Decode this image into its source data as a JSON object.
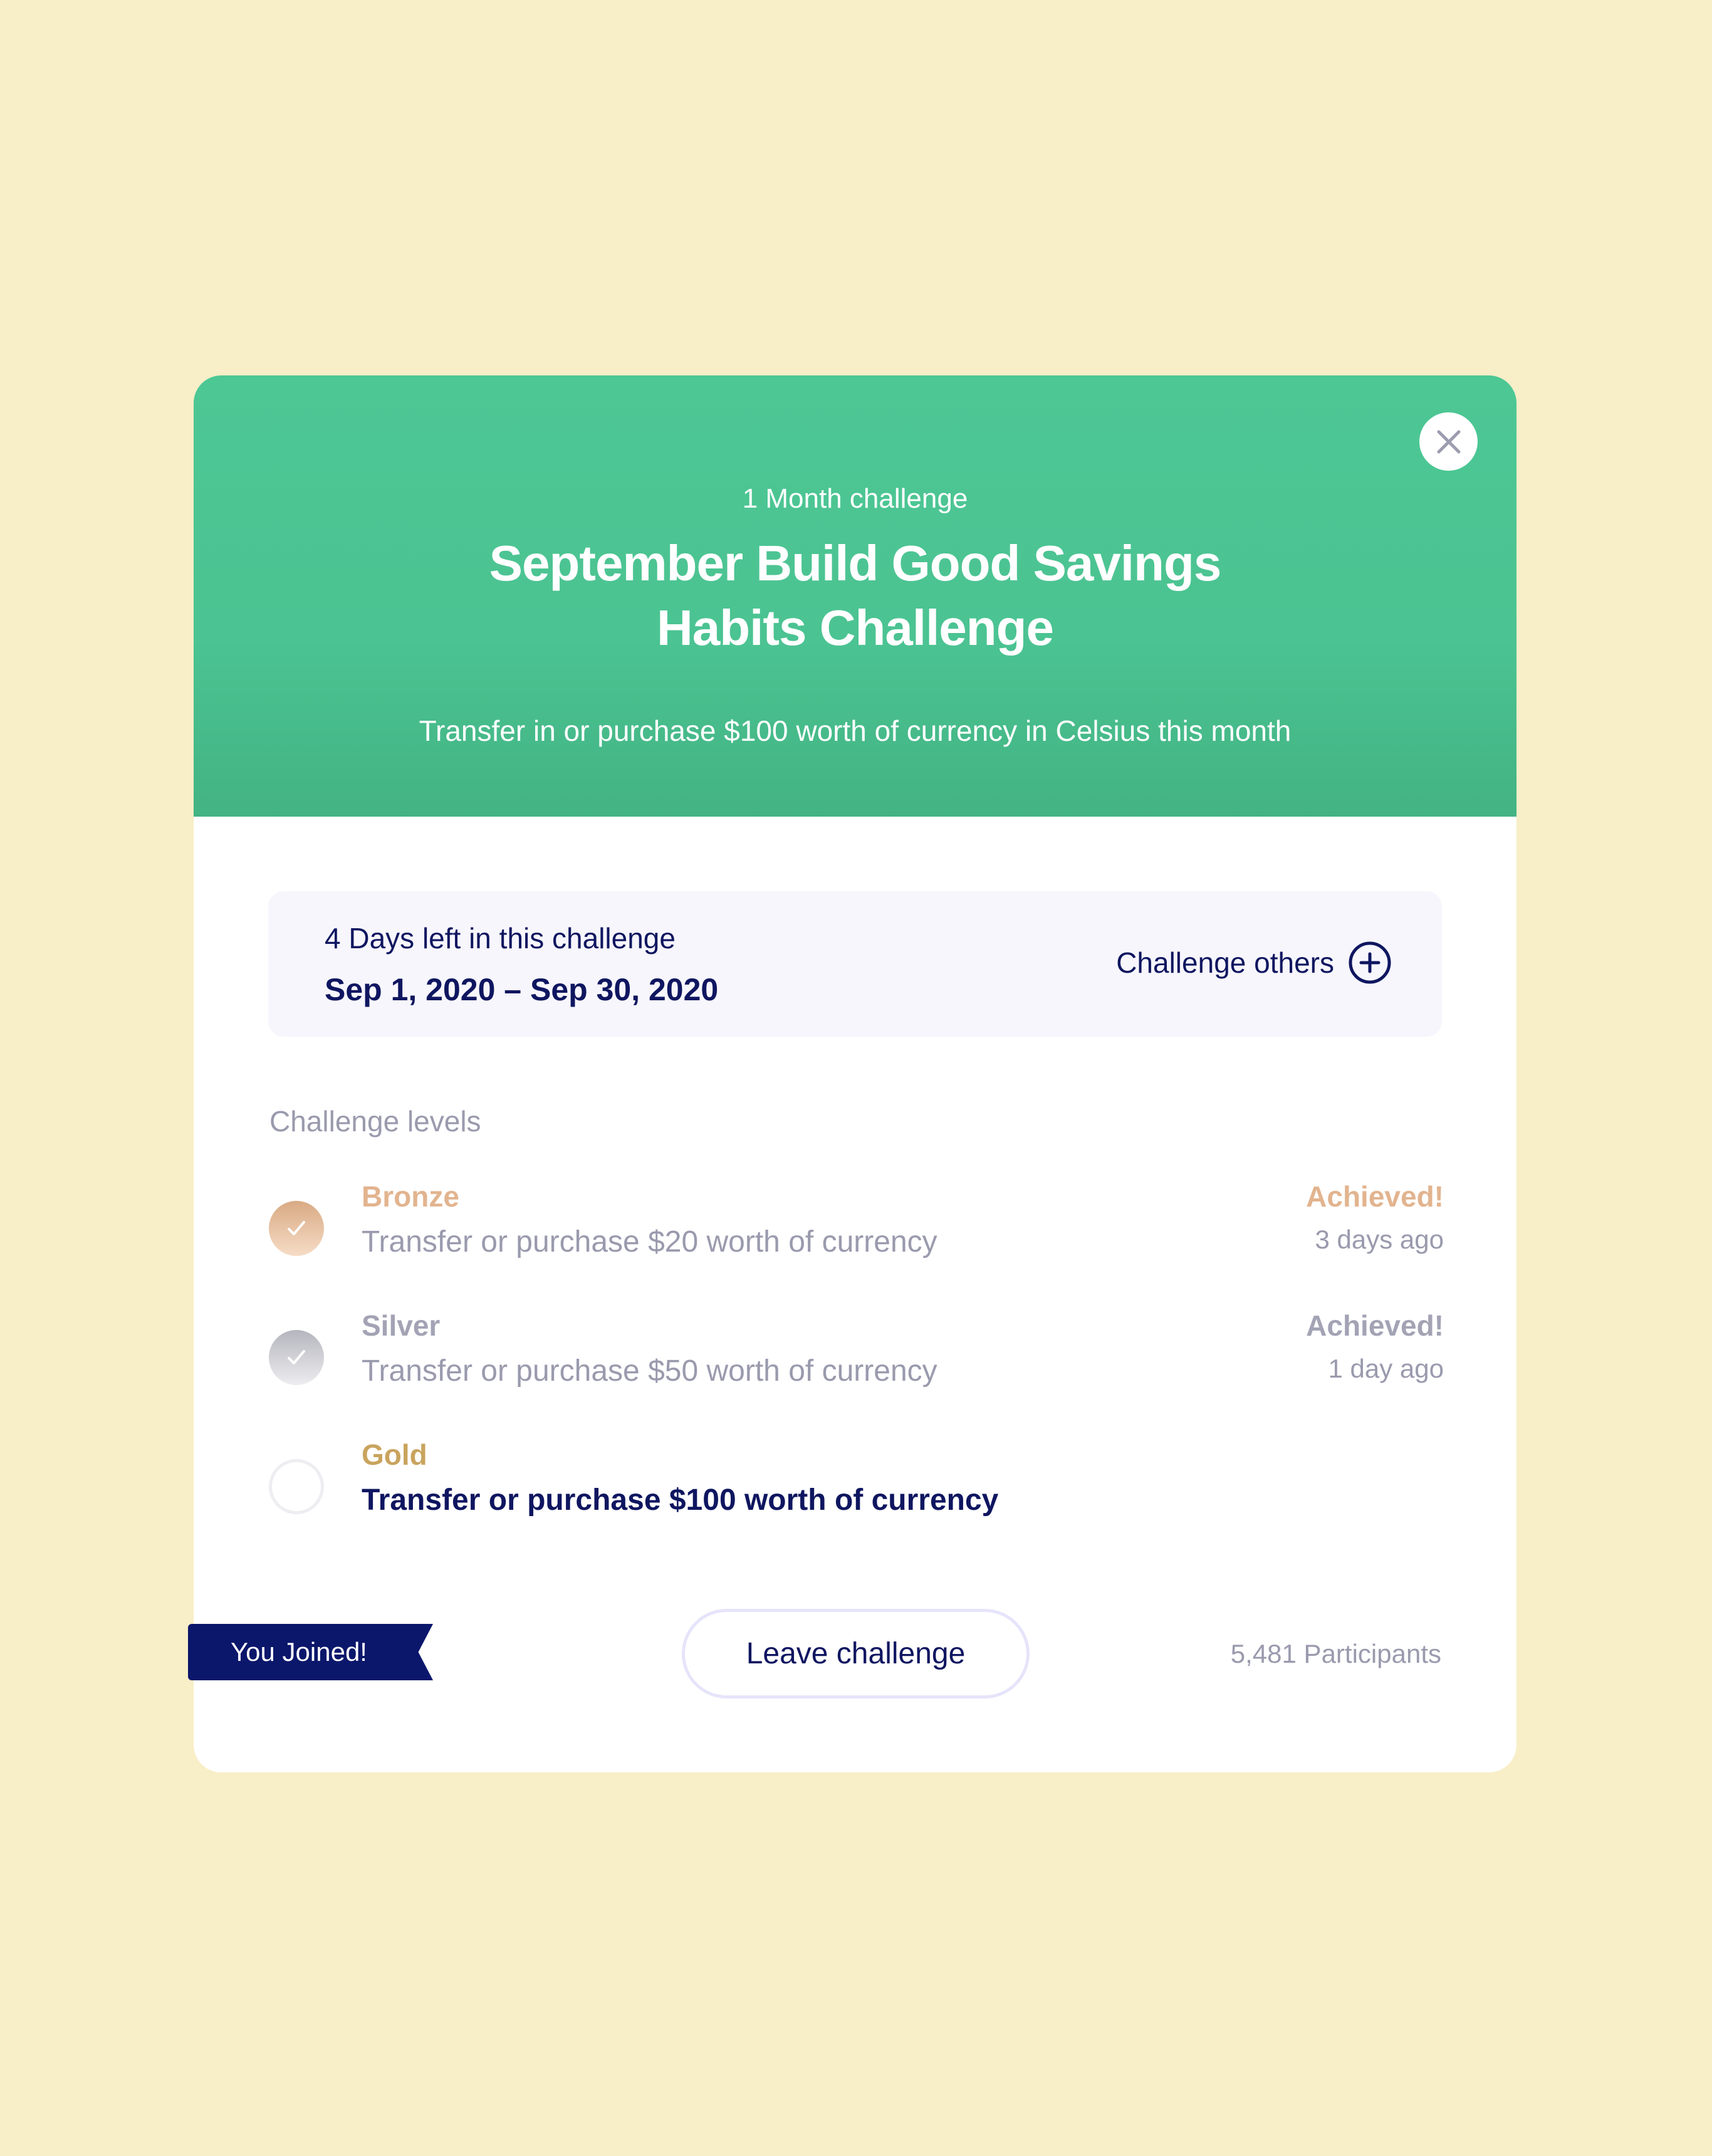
{
  "header": {
    "kicker": "1 Month challenge",
    "title_line1": "September Build Good Savings",
    "title_line2": "Habits Challenge",
    "subtitle": "Transfer in or purchase $100 worth of currency in Celsius this month",
    "close_icon": "close-icon"
  },
  "info": {
    "days_left": "4 Days left in this challenge",
    "date_range": "Sep 1, 2020 – Sep 30, 2020",
    "challenge_others": "Challenge others",
    "challenge_icon": "plus-circle-icon"
  },
  "levels_label": "Challenge levels",
  "levels": [
    {
      "name": "Bronze",
      "description": "Transfer or purchase $20 worth of currency",
      "status": "Achieved!",
      "when": "3 days ago",
      "achieved": true,
      "color": "#E2B48F"
    },
    {
      "name": "Silver",
      "description": "Transfer or purchase $50 worth of currency",
      "status": "Achieved!",
      "when": "1 day ago",
      "achieved": true,
      "color": "#A3A3B5"
    },
    {
      "name": "Gold",
      "description": "Transfer or purchase $100 worth of currency",
      "achieved": false,
      "color": "#C9A45E"
    }
  ],
  "footer": {
    "joined": "You Joined!",
    "leave": "Leave challenge",
    "participants": "5,481 Participants"
  },
  "colors": {
    "accent": "#4DC794",
    "navy": "#0F1660",
    "background": "#F8EEC7"
  }
}
